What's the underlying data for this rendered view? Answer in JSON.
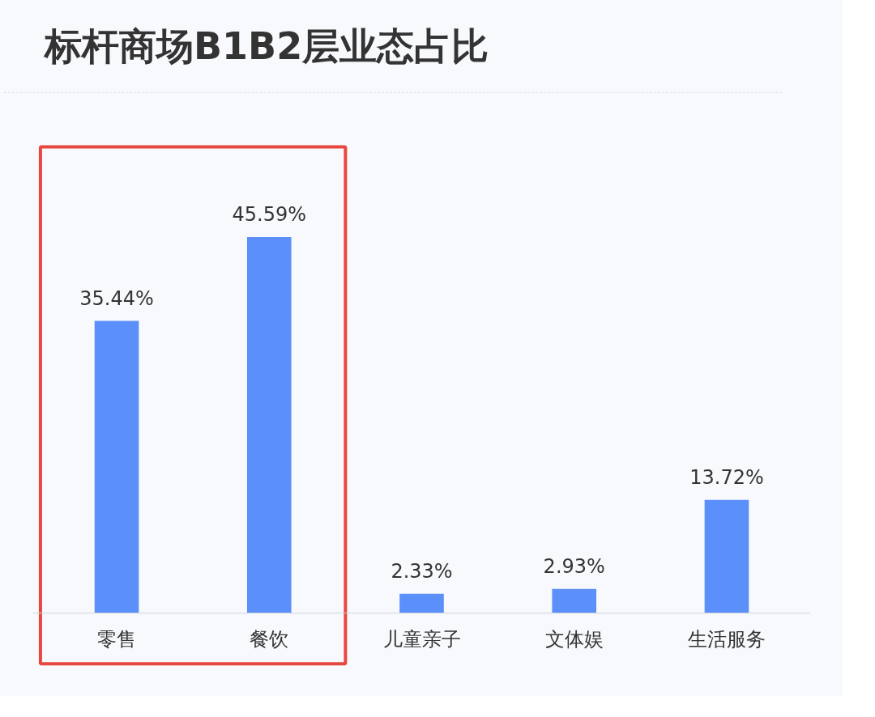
{
  "chart_data": {
    "type": "bar",
    "title": "标杆商场B1B2层业态占比",
    "categories": [
      "零售",
      "餐饮",
      "儿童亲子",
      "文体娱",
      "生活服务"
    ],
    "values": [
      35.44,
      45.59,
      2.33,
      2.93,
      13.72
    ],
    "value_labels": [
      "35.44%",
      "45.59%",
      "2.33%",
      "2.93%",
      "13.72%"
    ],
    "color": "#5b8ff9"
  }
}
